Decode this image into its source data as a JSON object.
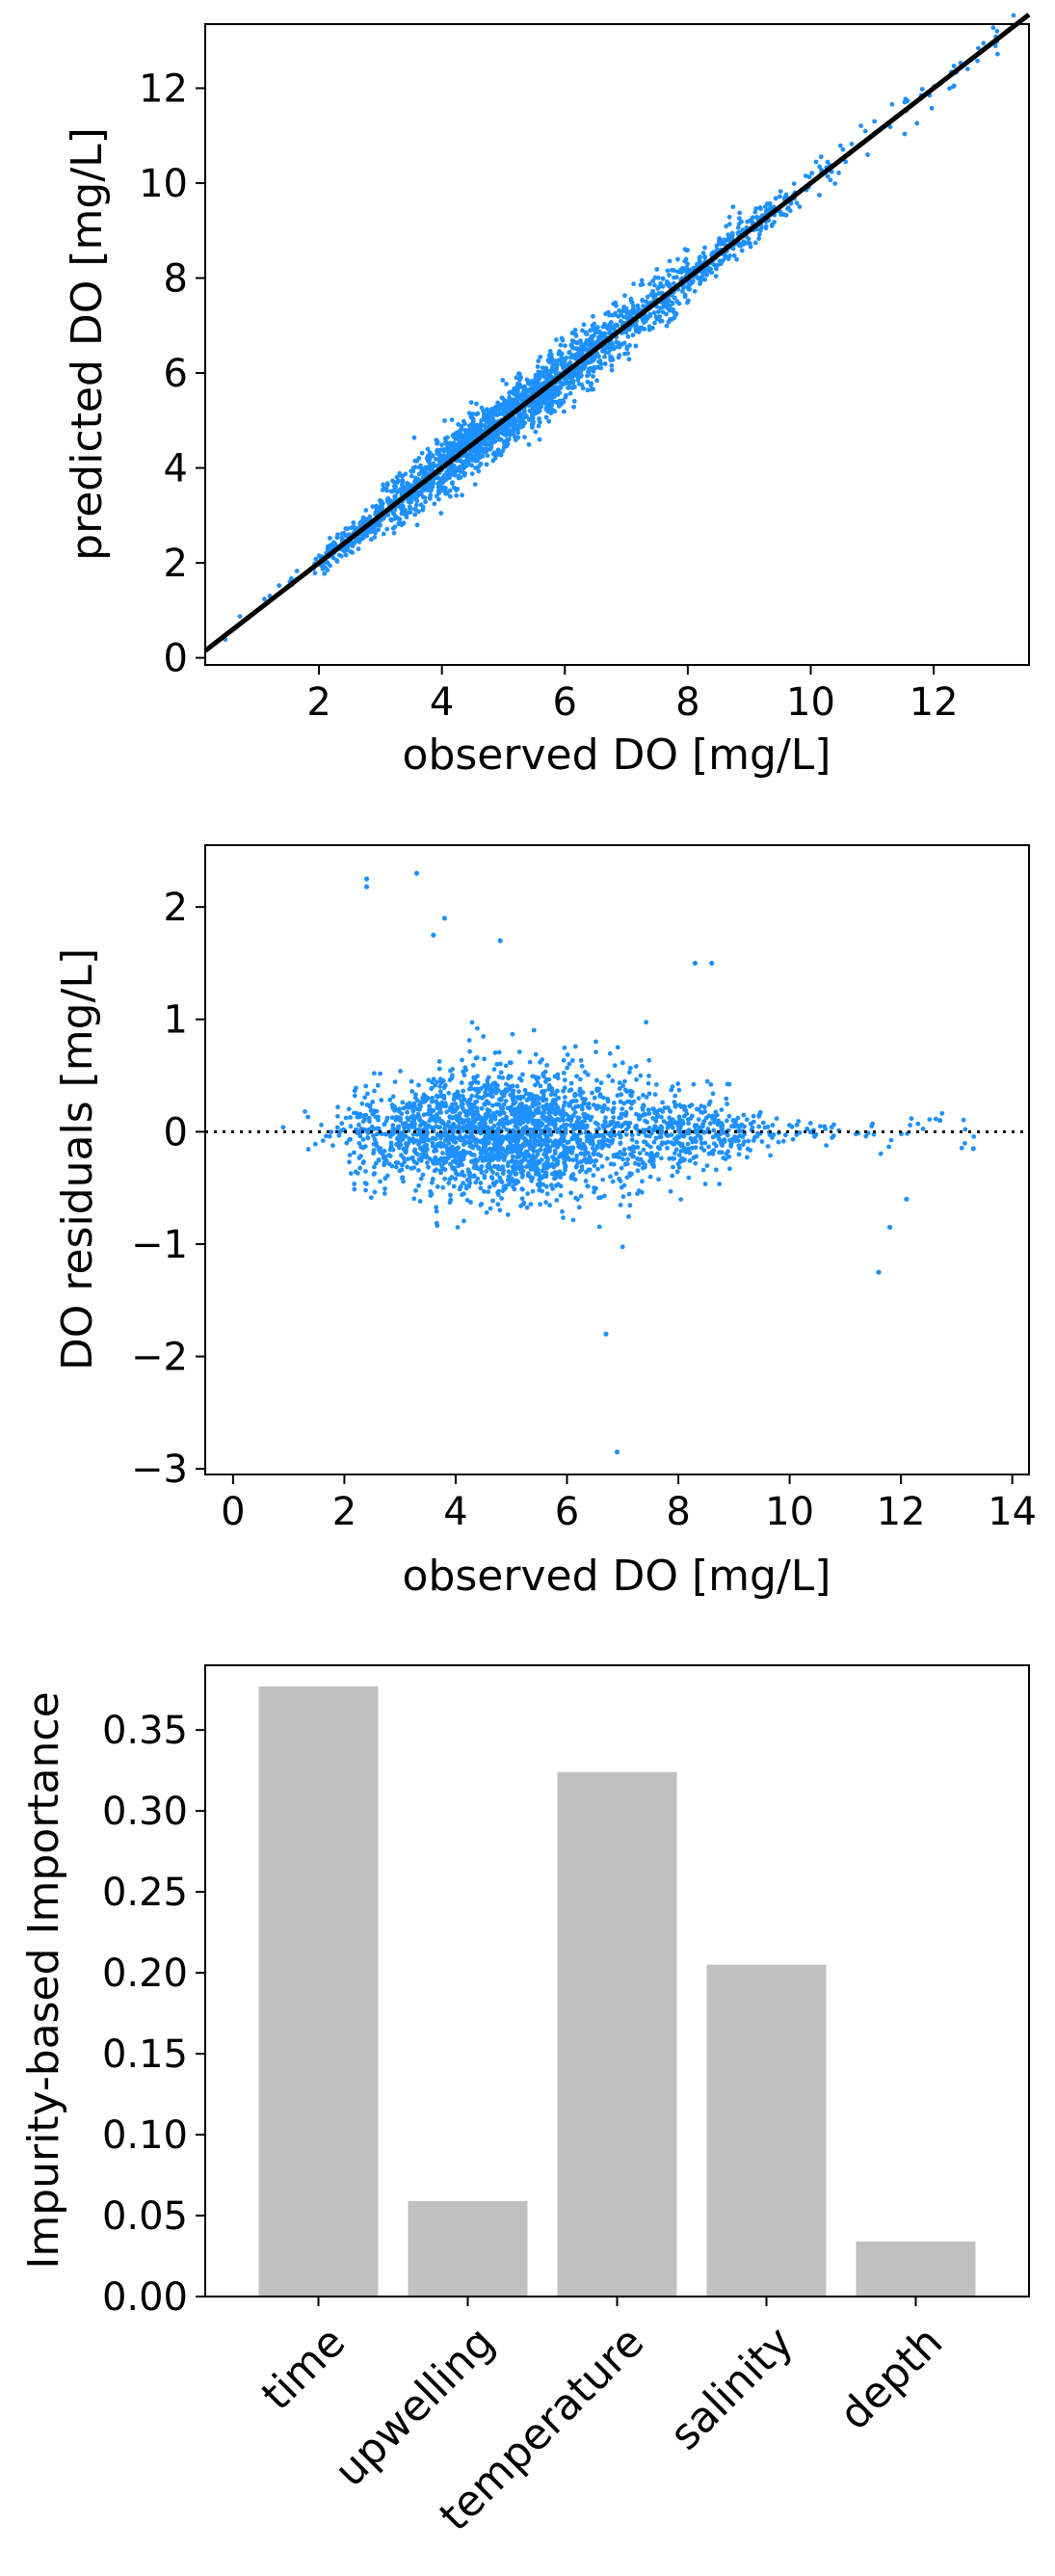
{
  "chart_data": [
    {
      "type": "scatter",
      "xlabel": "observed DO [mg/L]",
      "ylabel": "predicted DO [mg/L]",
      "xlim": [
        0.15,
        13.55
      ],
      "ylim": [
        -0.15,
        13.35
      ],
      "xticks": [
        2,
        4,
        6,
        8,
        10,
        12
      ],
      "yticks": [
        0,
        2,
        4,
        6,
        8,
        10,
        12
      ],
      "point_color": "#1E90FF",
      "reference_line": {
        "label": "1:1 line",
        "x": [
          0.15,
          13.55
        ],
        "y": [
          0.15,
          13.55
        ],
        "color": "#000000"
      },
      "series_summary": {
        "relation": "predicted ≈ observed",
        "x_range": [
          0.2,
          13.5
        ],
        "scatter_sd": 0.3
      }
    },
    {
      "type": "scatter",
      "xlabel": "observed DO [mg/L]",
      "ylabel": "DO residuals [mg/L]",
      "xlim": [
        -0.5,
        14.3
      ],
      "ylim": [
        -3.05,
        2.55
      ],
      "xticks": [
        0,
        2,
        4,
        6,
        8,
        10,
        12,
        14
      ],
      "yticks": [
        -3,
        -2,
        -1,
        0,
        1,
        2
      ],
      "point_color": "#1E90FF",
      "zero_line": {
        "y": 0,
        "style": "dotted",
        "color": "#000000"
      },
      "outliers": [
        {
          "x": 2.4,
          "y": 2.25
        },
        {
          "x": 3.3,
          "y": 2.3
        },
        {
          "x": 2.4,
          "y": 2.18
        },
        {
          "x": 3.8,
          "y": 1.9
        },
        {
          "x": 4.8,
          "y": 1.7
        },
        {
          "x": 3.6,
          "y": 1.75
        },
        {
          "x": 8.6,
          "y": 1.5
        },
        {
          "x": 8.3,
          "y": 1.5
        },
        {
          "x": 6.9,
          "y": -2.85
        },
        {
          "x": 6.7,
          "y": -1.8
        },
        {
          "x": 11.6,
          "y": -1.25
        },
        {
          "x": 12.1,
          "y": -0.6
        },
        {
          "x": 11.8,
          "y": -0.85
        },
        {
          "x": 13.3,
          "y": -0.15
        },
        {
          "x": 12.7,
          "y": 0.1
        }
      ]
    },
    {
      "type": "bar",
      "ylabel": "Impurity-based Importance",
      "categories": [
        "time",
        "upwelling",
        "temperature",
        "salinity",
        "depth"
      ],
      "values": [
        0.377,
        0.059,
        0.324,
        0.205,
        0.034
      ],
      "ylim": [
        0,
        0.39
      ],
      "yticks": [
        "0.00",
        "0.05",
        "0.10",
        "0.15",
        "0.20",
        "0.25",
        "0.30",
        "0.35"
      ],
      "bar_color": "#C0C0C0"
    }
  ]
}
